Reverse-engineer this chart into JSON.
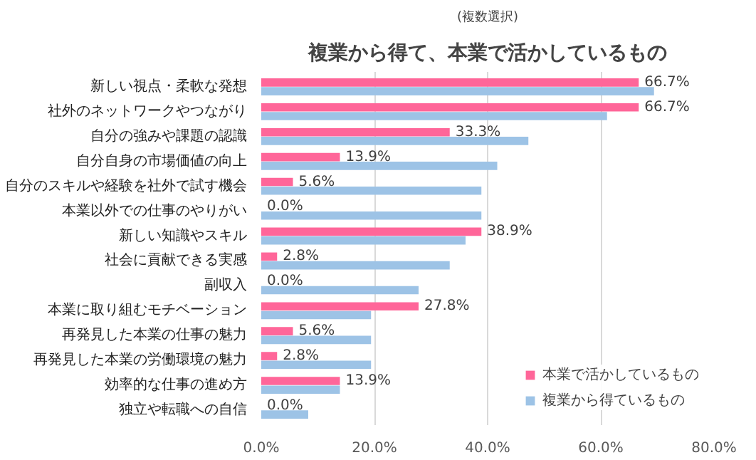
{
  "chart_data": {
    "type": "bar",
    "orientation": "horizontal",
    "title": "複業から得て、本業で活かしているもの",
    "subtitle": "(複数選択)",
    "categories": [
      "新しい視点・柔軟な発想",
      "社外のネットワークやつながり",
      "自分の強みや課題の認識",
      "自分自身の市場価値の向上",
      "自分のスキルや経験を社外で試す機会",
      "本業以外での仕事のやりがい",
      "新しい知識やスキル",
      "社会に貢献できる実感",
      "副収入",
      "本業に取り組むモチベーション",
      "再発見した本業の仕事の魅力",
      "再発見した本業の労働環境の魅力",
      "効率的な仕事の進め方",
      "独立や転職への自信"
    ],
    "series": [
      {
        "name": "本業で活かしているもの",
        "color": "#ff6699",
        "values": [
          66.7,
          66.7,
          33.3,
          13.9,
          5.6,
          0.0,
          38.9,
          2.8,
          0.0,
          27.8,
          5.6,
          2.8,
          13.9,
          0.0
        ],
        "value_labels": [
          "66.7%",
          "66.7%",
          "33.3%",
          "13.9%",
          "5.6%",
          "0.0%",
          "38.9%",
          "2.8%",
          "0.0%",
          "27.8%",
          "5.6%",
          "2.8%",
          "13.9%",
          "0.0%"
        ]
      },
      {
        "name": "複業から得ているもの",
        "color": "#9dc3e6",
        "values": [
          69.4,
          61.1,
          47.2,
          41.7,
          38.9,
          38.9,
          36.1,
          33.3,
          27.8,
          19.4,
          19.4,
          19.4,
          13.9,
          8.3
        ]
      }
    ],
    "xlim": [
      0,
      80
    ],
    "xticks": [
      {
        "value": 0,
        "label": "0.0%"
      },
      {
        "value": 20,
        "label": "20.0%"
      },
      {
        "value": 40,
        "label": "40.0%"
      },
      {
        "value": 60,
        "label": "60.0%"
      },
      {
        "value": 80,
        "label": "80.0%"
      }
    ],
    "grid": "x",
    "legend": "bottom right"
  }
}
